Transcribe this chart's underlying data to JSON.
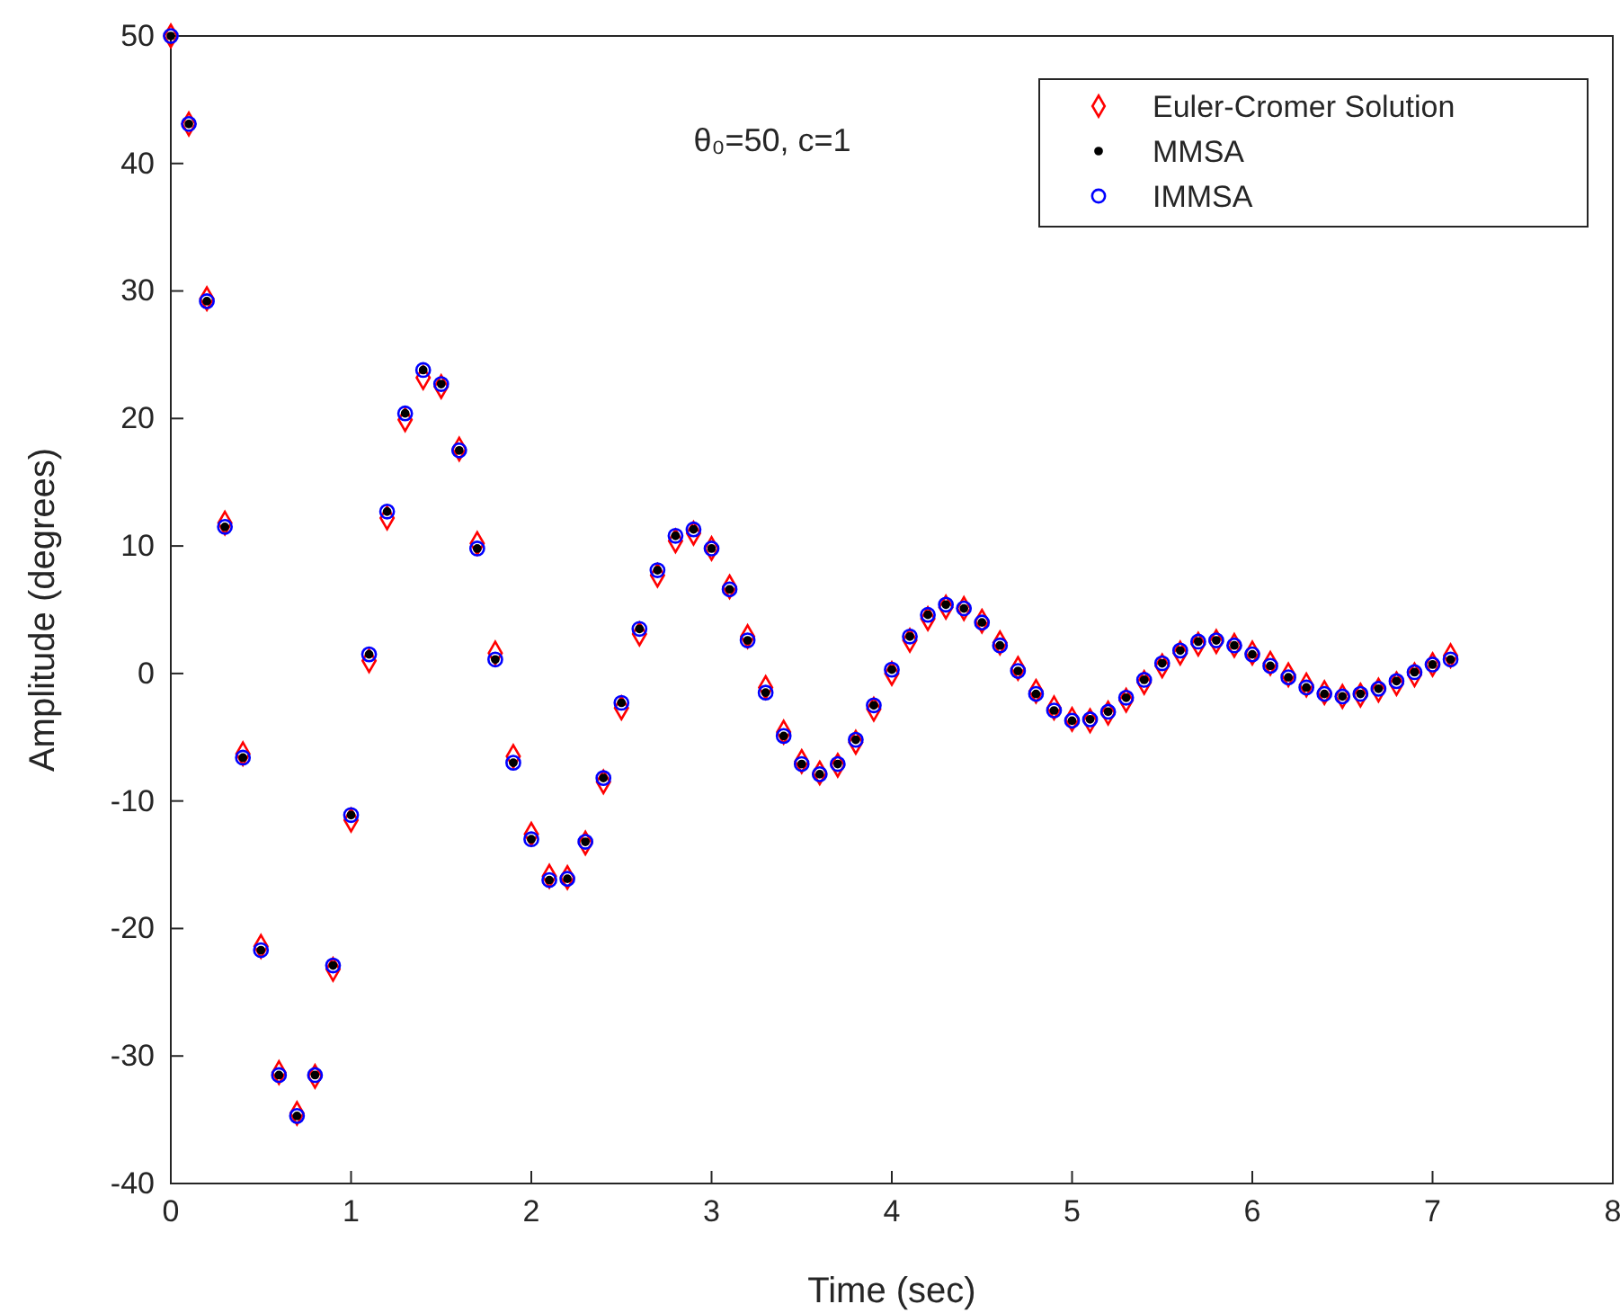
{
  "chart_data": {
    "type": "scatter",
    "xlabel": "Time (sec)",
    "ylabel": "Amplitude (degrees)",
    "annotations": [
      "θ₀=50, c=1"
    ],
    "x": [
      0,
      0.1,
      0.2,
      0.3,
      0.4,
      0.5,
      0.6,
      0.7,
      0.8,
      0.9,
      1,
      1.1,
      1.2,
      1.3,
      1.4,
      1.5,
      1.6,
      1.7,
      1.8,
      1.9,
      2,
      2.1,
      2.2,
      2.3,
      2.4,
      2.5,
      2.6,
      2.7,
      2.8,
      2.9,
      3,
      3.1,
      3.2,
      3.3,
      3.4,
      3.5,
      3.6,
      3.7,
      3.8,
      3.9,
      4,
      4.1,
      4.2,
      4.3,
      4.4,
      4.5,
      4.6,
      4.7,
      4.8,
      4.9,
      5,
      5.1,
      5.2,
      5.3,
      5.4,
      5.5,
      5.6,
      5.7,
      5.8,
      5.9,
      6,
      6.1,
      6.2,
      6.3,
      6.4,
      6.5,
      6.6,
      6.7,
      6.8,
      6.9,
      7,
      7.1
    ],
    "series": [
      {
        "name": "Euler-Cromer Solution",
        "color": "#ff0000",
        "marker": "diamond",
        "values": [
          50,
          43.1,
          29.4,
          11.8,
          -6.3,
          -21.4,
          -31.3,
          -34.5,
          -31.6,
          -23.2,
          -11.5,
          1.0,
          12.2,
          19.9,
          23.2,
          22.5,
          17.6,
          10.2,
          1.6,
          -6.5,
          -12.6,
          -15.9,
          -16.0,
          -13.3,
          -8.5,
          -2.7,
          3.1,
          7.7,
          10.4,
          11.0,
          9.8,
          6.8,
          2.9,
          -1.1,
          -4.6,
          -6.9,
          -7.8,
          -7.2,
          -5.4,
          -2.8,
          0.0,
          2.6,
          4.3,
          5.2,
          5.1,
          4.1,
          2.4,
          0.4,
          -1.4,
          -2.7,
          -3.6,
          -3.7,
          -3.1,
          -2.1,
          -0.7,
          0.6,
          1.6,
          2.3,
          2.5,
          2.2,
          1.6,
          0.8,
          -0.1,
          -0.9,
          -1.5,
          -1.8,
          -1.7,
          -1.3,
          -0.8,
          -0.1,
          0.7,
          1.4
        ]
      },
      {
        "name": "MMSA",
        "color": "#000000",
        "marker": "circle",
        "values": [
          50,
          43.1,
          29.2,
          11.5,
          -6.6,
          -21.7,
          -31.5,
          -34.7,
          -31.5,
          -22.9,
          -11.1,
          1.5,
          12.7,
          20.4,
          23.8,
          22.7,
          17.5,
          9.8,
          1.1,
          -7.0,
          -13.0,
          -16.2,
          -16.1,
          -13.2,
          -8.2,
          -2.3,
          3.5,
          8.1,
          10.8,
          11.3,
          9.8,
          6.6,
          2.6,
          -1.5,
          -4.9,
          -7.1,
          -7.9,
          -7.1,
          -5.2,
          -2.5,
          0.3,
          2.9,
          4.6,
          5.4,
          5.1,
          4.0,
          2.2,
          0.2,
          -1.6,
          -2.9,
          -3.7,
          -3.6,
          -3.0,
          -1.9,
          -0.5,
          0.8,
          1.8,
          2.5,
          2.6,
          2.2,
          1.5,
          0.6,
          -0.3,
          -1.1,
          -1.6,
          -1.8,
          -1.6,
          -1.2,
          -0.6,
          0.1,
          0.7,
          1.1
        ]
      },
      {
        "name": "IMMSA",
        "color": "#0000ff",
        "marker": "circle",
        "values": [
          50,
          43.1,
          29.2,
          11.5,
          -6.6,
          -21.7,
          -31.5,
          -34.7,
          -31.5,
          -22.9,
          -11.1,
          1.5,
          12.7,
          20.4,
          23.8,
          22.7,
          17.5,
          9.8,
          1.1,
          -7.0,
          -13.0,
          -16.2,
          -16.1,
          -13.2,
          -8.2,
          -2.3,
          3.5,
          8.1,
          10.8,
          11.3,
          9.8,
          6.6,
          2.6,
          -1.5,
          -4.9,
          -7.1,
          -7.9,
          -7.1,
          -5.2,
          -2.5,
          0.3,
          2.9,
          4.6,
          5.4,
          5.1,
          4.0,
          2.2,
          0.2,
          -1.6,
          -2.9,
          -3.7,
          -3.6,
          -3.0,
          -1.9,
          -0.5,
          0.8,
          1.8,
          2.5,
          2.6,
          2.2,
          1.5,
          0.6,
          -0.3,
          -1.1,
          -1.6,
          -1.8,
          -1.6,
          -1.2,
          -0.6,
          0.1,
          0.7,
          1.1
        ]
      }
    ],
    "xlim": [
      0,
      8
    ],
    "xticks": [
      0,
      1,
      2,
      3,
      4,
      5,
      6,
      7,
      8
    ],
    "ylim": [
      -40,
      50
    ],
    "yticks": [
      -40,
      -30,
      -20,
      -10,
      0,
      10,
      20,
      30,
      40,
      50
    ],
    "grid": false,
    "legend": "top right"
  }
}
